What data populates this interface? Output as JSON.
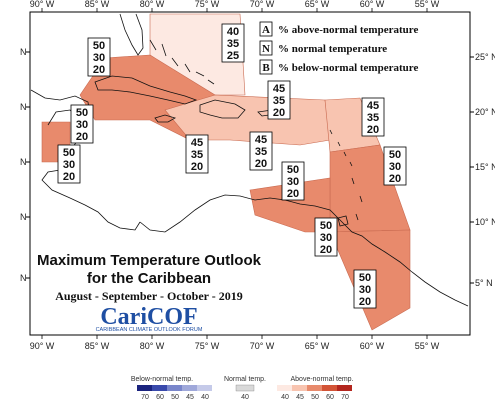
{
  "map": {
    "lon_ticks": [
      "90° W",
      "85° W",
      "80° W",
      "75° W",
      "70° W",
      "65° W",
      "60° W",
      "55° W"
    ],
    "lat_ticks_right": [
      "25° N",
      "20° N",
      "15° N",
      "10° N",
      "5° N"
    ],
    "lat_ticks_left": [
      "N",
      "N",
      "N",
      "N",
      "N"
    ]
  },
  "key": [
    {
      "letter": "A",
      "text": "% above-normal temperature"
    },
    {
      "letter": "N",
      "text": "% normal temperature"
    },
    {
      "letter": "B",
      "text": "% below-normal temperature"
    }
  ],
  "title": {
    "line1": "Maximum Temperature Outlook",
    "line2": "for the Caribbean",
    "period": "August - September - October - 2019"
  },
  "logo": {
    "name": "CariCOF",
    "tagline": "CARIBBEAN CLIMATE OUTLOOK FORUM"
  },
  "zones": [
    {
      "id": "bahamas",
      "a": "40",
      "n": "35",
      "b": "25",
      "color": "#fde9e2"
    },
    {
      "id": "greater-antilles",
      "a": "50",
      "n": "30",
      "b": "20",
      "color": "#e88a6c"
    },
    {
      "id": "belize",
      "a": "50",
      "n": "30",
      "b": "20",
      "color": "#e88a6c"
    },
    {
      "id": "west-belize",
      "a": "50",
      "n": "30",
      "b": "20",
      "color": "#e88a6c"
    },
    {
      "id": "caribbean-central",
      "a": "45",
      "n": "35",
      "b": "20",
      "color": "#f8c4b0"
    },
    {
      "id": "hispaniola",
      "a": "45",
      "n": "35",
      "b": "20",
      "color": "#f8c4b0"
    },
    {
      "id": "leeward",
      "a": "45",
      "n": "35",
      "b": "20",
      "color": "#f8c4b0"
    },
    {
      "id": "windward",
      "a": "50",
      "n": "30",
      "b": "20",
      "color": "#e88a6c"
    },
    {
      "id": "abc-islands",
      "a": "50",
      "n": "30",
      "b": "20",
      "color": "#e88a6c"
    },
    {
      "id": "trinidad",
      "a": "50",
      "n": "30",
      "b": "20",
      "color": "#e88a6c"
    },
    {
      "id": "guianas",
      "a": "50",
      "n": "30",
      "b": "20",
      "color": "#e88a6c"
    }
  ],
  "colorbar": {
    "below_label": "Below-normal temp.",
    "normal_label": "Normal temp.",
    "above_label": "Above-normal temp.",
    "below_ticks": [
      "70",
      "60",
      "50",
      "45",
      "40"
    ],
    "normal_ticks": [
      "40"
    ],
    "above_ticks": [
      "40",
      "45",
      "50",
      "60",
      "70"
    ],
    "below_colors": [
      "#1a237e",
      "#3949ab",
      "#7986cb",
      "#9fa8da",
      "#c5cae9"
    ],
    "normal_color": "#d9d9d9",
    "above_colors": [
      "#fde9e2",
      "#f8c4b0",
      "#e88a6c",
      "#d35436",
      "#b3261e"
    ]
  }
}
